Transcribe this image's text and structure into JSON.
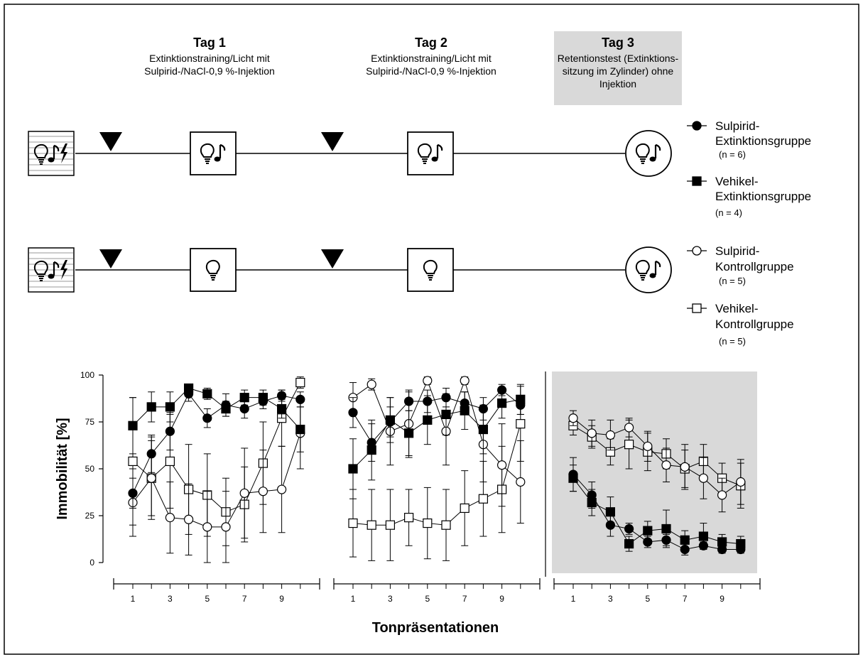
{
  "header": {
    "days": [
      {
        "title": "Tag 1",
        "lines": [
          "Extinktionstraining/Licht mit",
          "Sulpirid-/NaCl-0,9 %-Injektion"
        ]
      },
      {
        "title": "Tag 2",
        "lines": [
          "Extinktionstraining/Licht mit",
          "Sulpirid-/NaCl-0,9 %-Injektion"
        ]
      },
      {
        "title": "Tag 3",
        "lines": [
          "Retentionstest (Extinktions-",
          "sitzung im Zylinder)  ohne",
          "Injektion"
        ]
      }
    ]
  },
  "legend": [
    {
      "marker": "circle-filled",
      "lines": [
        "Sulpirid-",
        "Extinktionsgruppe"
      ],
      "n": "(n = 6)"
    },
    {
      "marker": "square-filled",
      "lines": [
        "Vehikel-",
        "Extinktionsgruppe"
      ],
      "n": "(n = 4)"
    },
    {
      "marker": "circle-open",
      "lines": [
        "Sulpirid-",
        "Kontrollgruppe"
      ],
      "n": "(n = 5)"
    },
    {
      "marker": "square-open",
      "lines": [
        "Vehikel-",
        "Kontrollgruppe"
      ],
      "n": "(n = 5)"
    }
  ],
  "colors": {
    "shade": "#d9d9d9",
    "ink": "#000000"
  },
  "chart_data": {
    "type": "line",
    "ylabel": "Immobilität [%]",
    "xlabel": "Tonpräsentationen",
    "ylim": [
      0,
      100
    ],
    "yticks": [
      "0",
      "25",
      "50",
      "75",
      "100"
    ],
    "xticks": [
      "1",
      "3",
      "5",
      "7",
      "9"
    ],
    "x": [
      1,
      2,
      3,
      4,
      5,
      6,
      7,
      8,
      9,
      10
    ],
    "panels": [
      {
        "day": "Tag 1",
        "shaded": false,
        "series": [
          {
            "name": "Sulpirid-Extinktionsgruppe",
            "marker": "circle-filled",
            "values": [
              37,
              58,
              70,
              90,
              77,
              84,
              82,
              86,
              89,
              87
            ],
            "err": [
              8,
              10,
              10,
              4,
              5,
              6,
              5,
              4,
              3,
              4
            ]
          },
          {
            "name": "Vehikel-Extinktionsgruppe",
            "marker": "square-filled",
            "values": [
              73,
              83,
              83,
              93,
              90,
              82,
              88,
              88,
              82,
              71
            ],
            "err": [
              15,
              8,
              8,
              2,
              3,
              4,
              4,
              4,
              5,
              12
            ]
          },
          {
            "name": "Sulpirid-Kontrollgruppe",
            "marker": "circle-open",
            "values": [
              32,
              45,
              24,
              23,
              19,
              19,
              37,
              38,
              39,
              69
            ],
            "err": [
              18,
              22,
              19,
              19,
              19,
              19,
              24,
              22,
              23,
              19
            ]
          },
          {
            "name": "Vehikel-Kontrollgruppe",
            "marker": "square-open",
            "values": [
              54,
              45,
              54,
              39,
              36,
              27,
              31,
              53,
              77,
              96
            ],
            "err": [
              34,
              20,
              25,
              24,
              22,
              18,
              20,
              22,
              15,
              3
            ]
          }
        ]
      },
      {
        "day": "Tag 2",
        "shaded": false,
        "series": [
          {
            "name": "Sulpirid-Extinktionsgruppe",
            "marker": "circle-filled",
            "values": [
              80,
              64,
              75,
              86,
              86,
              88,
              85,
              82,
              92,
              84
            ],
            "err": [
              8,
              10,
              8,
              5,
              6,
              5,
              6,
              6,
              3,
              5
            ]
          },
          {
            "name": "Vehikel-Extinktionsgruppe",
            "marker": "square-filled",
            "values": [
              50,
              60,
              76,
              69,
              76,
              79,
              81,
              71,
              85,
              87
            ],
            "err": [
              16,
              16,
              12,
              12,
              13,
              11,
              10,
              13,
              8,
              8
            ]
          },
          {
            "name": "Sulpirid-Kontrollgruppe",
            "marker": "circle-open",
            "values": [
              88,
              95,
              70,
              74,
              97,
              70,
              97,
              63,
              52,
              43
            ],
            "err": [
              8,
              3,
              18,
              18,
              2,
              18,
              2,
              20,
              22,
              22
            ]
          },
          {
            "name": "Vehikel-Kontrollgruppe",
            "marker": "square-open",
            "values": [
              21,
              20,
              20,
              24,
              21,
              20,
              29,
              34,
              39,
              74
            ],
            "err": [
              18,
              19,
              19,
              15,
              19,
              19,
              20,
              20,
              23,
              20
            ]
          }
        ]
      },
      {
        "day": "Tag 3",
        "shaded": true,
        "series": [
          {
            "name": "Sulpirid-Extinktionsgruppe",
            "marker": "circle-filled",
            "values": [
              47,
              36,
              20,
              18,
              11,
              12,
              7,
              9,
              7,
              7
            ],
            "err": [
              9,
              7,
              6,
              3,
              3,
              3,
              3,
              2,
              2,
              2
            ]
          },
          {
            "name": "Vehikel-Extinktionsgruppe",
            "marker": "square-filled",
            "values": [
              45,
              32,
              27,
              10,
              17,
              18,
              12,
              14,
              11,
              10
            ],
            "err": [
              7,
              7,
              8,
              4,
              5,
              10,
              5,
              7,
              4,
              4
            ]
          },
          {
            "name": "Sulpirid-Kontrollgruppe",
            "marker": "circle-open",
            "values": [
              77,
              69,
              68,
              72,
              62,
              52,
              51,
              45,
              36,
              43
            ],
            "err": [
              4,
              7,
              8,
              5,
              8,
              9,
              12,
              11,
              9,
              12
            ]
          },
          {
            "name": "Vehikel-Kontrollgruppe",
            "marker": "square-open",
            "values": [
              73,
              67,
              59,
              63,
              59,
              58,
              50,
              54,
              45,
              41
            ],
            "err": [
              5,
              6,
              7,
              13,
              10,
              8,
              10,
              9,
              8,
              12
            ]
          }
        ]
      }
    ]
  }
}
